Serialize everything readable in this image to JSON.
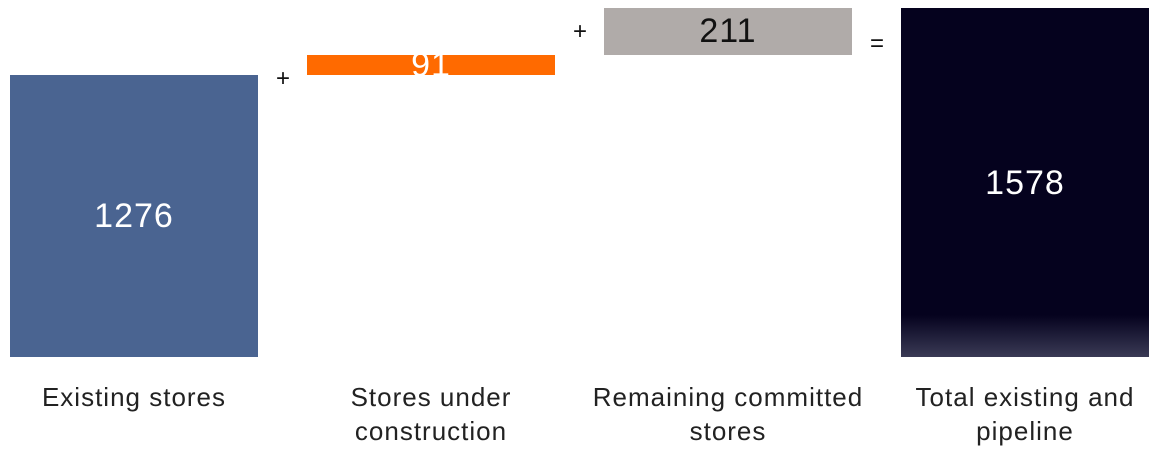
{
  "chart_data": {
    "type": "waterfall",
    "categories": [
      "Existing stores",
      "Stores under construction",
      "Remaining committed stores",
      "Total existing and pipeline"
    ],
    "values": [
      1276,
      91,
      211,
      1578
    ],
    "kinds": [
      "start",
      "step",
      "step",
      "total"
    ],
    "operators": [
      "+",
      "+",
      "="
    ],
    "colors": [
      "#4a6491",
      "#ff6a00",
      "#b0aba9",
      "#05021e"
    ],
    "label_colors": [
      "#ffffff",
      "#ffffff",
      "#111111",
      "#ffffff"
    ]
  }
}
